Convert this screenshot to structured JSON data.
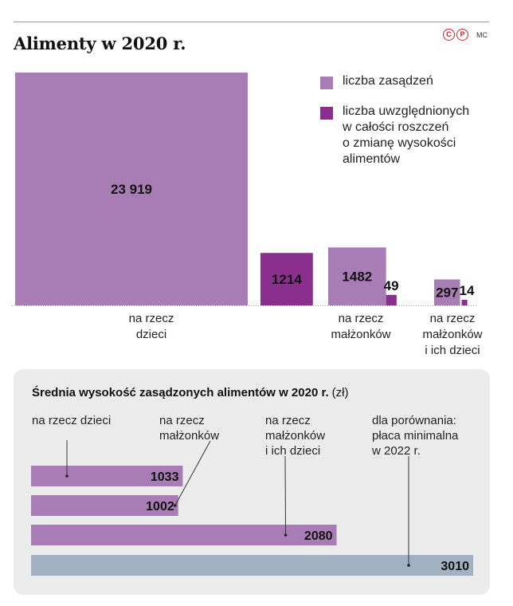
{
  "title": "Alimenty w 2020 r.",
  "copyright_marks": [
    "C",
    "P"
  ],
  "author": "MC",
  "colors": {
    "light_purple": "#a87db5",
    "dark_purple": "#8b2f8e",
    "grey_blue": "#a1b1c1",
    "panel_bg": "#ececec"
  },
  "chart_data": [
    {
      "type": "bar",
      "title": "Alimenty w 2020 r.",
      "categories": [
        "na rzecz dzieci",
        "na rzecz małżonków",
        "na rzecz małżonków i ich dzieci"
      ],
      "category_lines": [
        [
          "na rzecz",
          "dzieci"
        ],
        [
          "na rzecz",
          "małżonków"
        ],
        [
          "na rzecz",
          "małżonków",
          "i ich dzieci"
        ]
      ],
      "series": [
        {
          "name": "liczba zasądzeń",
          "color": "#a87db5",
          "values": [
            23919,
            1482,
            297
          ],
          "labels": [
            "23 919",
            "1482",
            "297"
          ]
        },
        {
          "name": "liczba uwzględnionych w całości roszczeń o zmianę wysokości alimentów",
          "color": "#8b2f8e",
          "values": [
            1214,
            49,
            14
          ],
          "labels": [
            "1214",
            "49",
            "14"
          ]
        }
      ],
      "legend_lines": [
        [
          "liczba zasądzeń"
        ],
        [
          "liczba uwzględnionych",
          "w całości roszczeń",
          "o zmianę wysokości",
          "alimentów"
        ]
      ],
      "legend_position": "top-right",
      "grid": false
    },
    {
      "type": "bar",
      "orientation": "horizontal",
      "title": "Średnia wysokość zasądzonych alimentów w 2020 r.",
      "unit": "(zł)",
      "categories": [
        "na rzecz dzieci",
        "na rzecz małżonków",
        "na rzecz małżonków i ich dzieci",
        "dla porównania: płaca minimalna w 2022 r."
      ],
      "category_lines": [
        [
          "na rzecz dzieci"
        ],
        [
          "na rzecz",
          "małżonków"
        ],
        [
          "na rzecz",
          "małżonków",
          "i ich dzieci"
        ],
        [
          "dla porównania:",
          "płaca minimalna",
          "w 2022 r."
        ]
      ],
      "values": [
        1033,
        1002,
        2080,
        3010
      ],
      "colors": [
        "#a87db5",
        "#a87db5",
        "#a87db5",
        "#a1b1c1"
      ],
      "grid": false
    }
  ]
}
